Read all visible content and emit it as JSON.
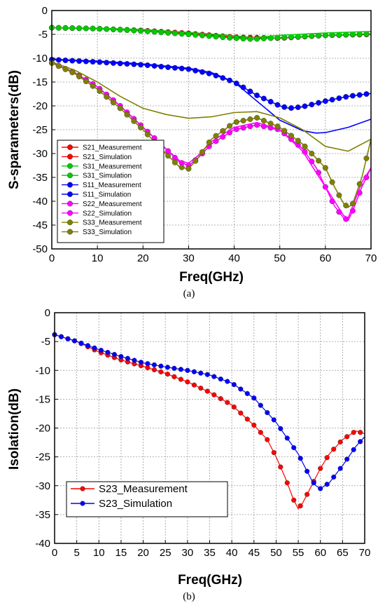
{
  "chart_data": [
    {
      "type": "line",
      "caption": "(a)",
      "xlabel": "Freq(GHz)",
      "ylabel": "S-sparameters(dB)",
      "xlim": [
        0,
        70
      ],
      "ylim": [
        -50,
        0
      ],
      "xticks": [
        0,
        10,
        20,
        30,
        40,
        50,
        60,
        70
      ],
      "yticks": [
        0,
        -5,
        -10,
        -15,
        -20,
        -25,
        -30,
        -35,
        -40,
        -45,
        -50
      ],
      "grid": true,
      "legend_position": "bottom-left",
      "series": [
        {
          "name": "S21_Measurement",
          "color": "#ff0000",
          "marker": true,
          "x": [
            0,
            10,
            20,
            30,
            40,
            50,
            60,
            70
          ],
          "y": [
            -3.6,
            -3.8,
            -4.2,
            -4.8,
            -5.6,
            -5.8,
            -5.2,
            -5.0
          ]
        },
        {
          "name": "S21_Simulation",
          "color": "#ff0000",
          "marker": false,
          "x": [
            0,
            10,
            20,
            30,
            40,
            50,
            60,
            70
          ],
          "y": [
            -3.6,
            -3.8,
            -4.2,
            -4.8,
            -5.6,
            -5.8,
            -5.2,
            -5.0
          ]
        },
        {
          "name": "S31_Measurement",
          "color": "#00cc00",
          "marker": true,
          "x": [
            0,
            10,
            20,
            30,
            40,
            44,
            50,
            60,
            70
          ],
          "y": [
            -3.6,
            -3.8,
            -4.3,
            -5.0,
            -5.8,
            -6.0,
            -5.7,
            -5.2,
            -4.9
          ]
        },
        {
          "name": "S31_Simulation",
          "color": "#00cc00",
          "marker": false,
          "x": [
            0,
            10,
            20,
            30,
            40,
            44,
            50,
            60,
            70
          ],
          "y": [
            -3.6,
            -3.7,
            -4.0,
            -4.6,
            -5.3,
            -5.7,
            -5.2,
            -4.7,
            -4.4
          ]
        },
        {
          "name": "S11_Measurement",
          "color": "#0000ff",
          "marker": true,
          "x": [
            0,
            10,
            20,
            30,
            35,
            40,
            45,
            50,
            52,
            55,
            60,
            65,
            70
          ],
          "y": [
            -10.3,
            -10.8,
            -11.4,
            -12.3,
            -13.3,
            -15.0,
            -17.8,
            -20.0,
            -20.5,
            -20.2,
            -19.0,
            -18.0,
            -17.4
          ]
        },
        {
          "name": "S11_Simulation",
          "color": "#0000ff",
          "marker": false,
          "x": [
            0,
            10,
            20,
            30,
            35,
            40,
            45,
            50,
            55,
            58,
            60,
            65,
            70
          ],
          "y": [
            -10.2,
            -10.6,
            -11.2,
            -12.1,
            -13.0,
            -15.0,
            -19.0,
            -23.0,
            -25.2,
            -25.7,
            -25.6,
            -24.5,
            -22.8
          ]
        },
        {
          "name": "S22_Measurement",
          "color": "#ff00ff",
          "marker": true,
          "x": [
            0,
            5,
            10,
            15,
            20,
            25,
            28,
            30,
            32,
            35,
            40,
            45,
            50,
            55,
            58,
            60,
            62,
            64,
            65,
            66,
            68,
            70
          ],
          "y": [
            -11.0,
            -13.0,
            -16.0,
            -20.0,
            -24.5,
            -29.0,
            -31.8,
            -32.5,
            -31.0,
            -28.0,
            -25.0,
            -24.0,
            -25.0,
            -29.0,
            -33.0,
            -37.0,
            -41.0,
            -43.5,
            -44.0,
            -42.0,
            -37.0,
            -33.0
          ]
        },
        {
          "name": "S22_Simulation",
          "color": "#ff00ff",
          "marker": false,
          "x": [
            0,
            5,
            10,
            15,
            20,
            25,
            28,
            30,
            32,
            35,
            40,
            45,
            50,
            55,
            58,
            60,
            62,
            64,
            65,
            66,
            68,
            70
          ],
          "y": [
            -11.0,
            -13.0,
            -16.0,
            -20.0,
            -24.5,
            -29.0,
            -31.5,
            -32.0,
            -30.5,
            -27.5,
            -24.5,
            -23.5,
            -25.0,
            -29.5,
            -34.0,
            -37.0,
            -40.0,
            -43.0,
            -43.5,
            -41.0,
            -36.0,
            -33.0
          ]
        },
        {
          "name": "S33_Measurement",
          "color": "#808000",
          "marker": true,
          "x": [
            0,
            5,
            10,
            15,
            20,
            25,
            28,
            30,
            32,
            35,
            40,
            45,
            50,
            55,
            60,
            62,
            64,
            65,
            66,
            68,
            70
          ],
          "y": [
            -11.0,
            -13.2,
            -16.5,
            -20.5,
            -25.0,
            -30.0,
            -32.8,
            -33.2,
            -31.0,
            -27.0,
            -23.5,
            -22.5,
            -24.5,
            -28.0,
            -33.0,
            -37.0,
            -40.5,
            -41.3,
            -40.5,
            -35.0,
            -27.0
          ]
        },
        {
          "name": "S33_Simulation",
          "color": "#808000",
          "marker": false,
          "x": [
            0,
            5,
            10,
            15,
            20,
            25,
            30,
            35,
            40,
            45,
            50,
            55,
            60,
            65,
            70
          ],
          "y": [
            -10.8,
            -12.5,
            -15.0,
            -18.0,
            -20.5,
            -21.8,
            -22.6,
            -22.3,
            -21.4,
            -21.2,
            -22.5,
            -25.0,
            -28.5,
            -29.5,
            -27.0
          ]
        }
      ]
    },
    {
      "type": "line",
      "caption": "(b)",
      "xlabel": "Freq(GHz)",
      "ylabel": "Isolation(dB)",
      "xlim": [
        0,
        70
      ],
      "ylim": [
        -40,
        0
      ],
      "xticks": [
        0,
        5,
        10,
        15,
        20,
        25,
        30,
        35,
        40,
        45,
        50,
        55,
        60,
        65,
        70
      ],
      "yticks": [
        0,
        -5,
        -10,
        -15,
        -20,
        -25,
        -30,
        -35,
        -40
      ],
      "grid": true,
      "legend_position": "bottom-left",
      "series": [
        {
          "name": "S23_Measurement",
          "color": "#ff0000",
          "marker": true,
          "x": [
            0,
            5,
            10,
            15,
            20,
            25,
            30,
            35,
            40,
            45,
            48,
            50,
            52,
            54,
            55,
            56,
            58,
            60,
            62,
            65,
            68,
            70
          ],
          "y": [
            -3.8,
            -5.0,
            -6.8,
            -8.2,
            -9.3,
            -10.5,
            -12.0,
            -13.8,
            -16.0,
            -19.5,
            -22.0,
            -25.0,
            -28.5,
            -32.5,
            -34.0,
            -33.0,
            -30.0,
            -27.0,
            -24.5,
            -22.0,
            -20.5,
            -21.0
          ]
        },
        {
          "name": "S23_Simulation",
          "color": "#0000ff",
          "marker": true,
          "x": [
            0,
            5,
            10,
            15,
            20,
            25,
            30,
            35,
            40,
            45,
            50,
            53,
            55,
            57,
            58,
            59,
            60,
            62,
            65,
            68,
            70
          ],
          "y": [
            -3.8,
            -5.0,
            -6.4,
            -7.6,
            -8.7,
            -9.4,
            -10.0,
            -10.8,
            -12.2,
            -14.8,
            -19.0,
            -22.3,
            -24.5,
            -27.5,
            -29.0,
            -30.0,
            -30.5,
            -29.5,
            -26.5,
            -23.2,
            -21.5
          ]
        }
      ]
    }
  ]
}
